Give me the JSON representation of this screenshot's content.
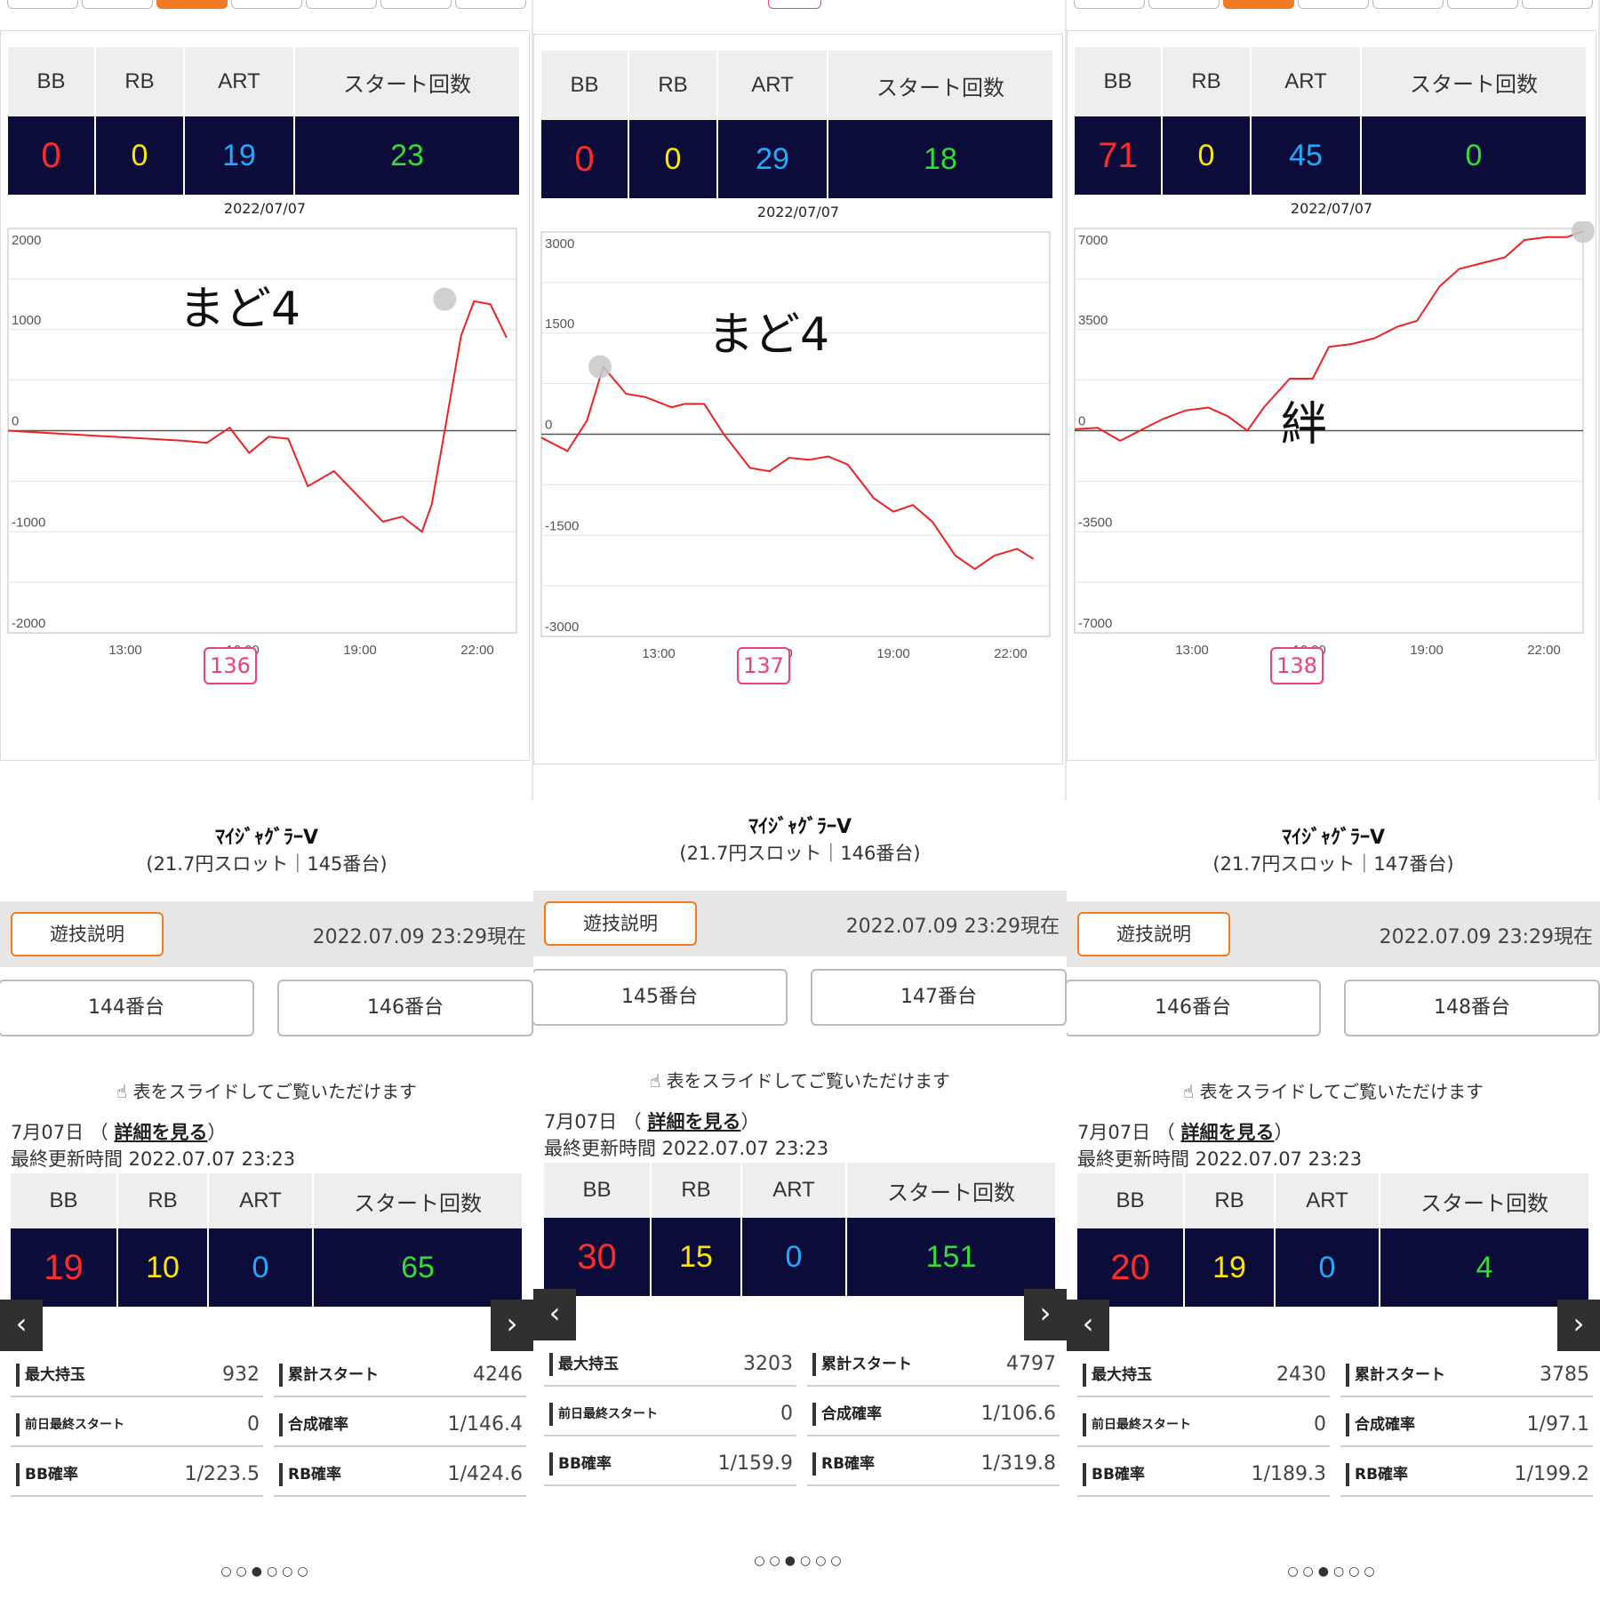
{
  "panels": [
    {
      "header": [
        "BB",
        "RB",
        "ART",
        "スタート回数"
      ],
      "top_stats": {
        "bb": "0",
        "rb": "0",
        "art": "19",
        "start": "23"
      },
      "chart_date": "2022/07/07",
      "y_ticks": [
        "2000",
        "1000",
        "0",
        "-1000",
        "-2000"
      ],
      "x_ticks": [
        "13:00",
        "16:00",
        "19:00",
        "22:00"
      ],
      "overlay": "まど4",
      "machine_no": "136",
      "machine_name": "ﾏｲｼﾞｬｸﾞﾗｰV",
      "machine_sub": "(21.7円スロット｜145番台)",
      "play_button": "遊技説明",
      "timestamp": "2022.07.09 23:29現在",
      "prev_unit": "144番台",
      "next_unit": "146番台",
      "hint": "表をスライドしてご覧いただけます",
      "day": "7月07日",
      "detail_link": "詳細を見る",
      "updated": "最終更新時間 2022.07.07 23:23",
      "day_stats": {
        "bb": "19",
        "rb": "10",
        "art": "0",
        "start": "65"
      },
      "details": {
        "max_label": "最大持玉",
        "max": "932",
        "total_label": "累計スタート",
        "total": "4246",
        "prev_label": "前日最終スタート",
        "prev": "0",
        "comb_label": "合成確率",
        "comb": "1/146.4",
        "bbp_label": "BB確率",
        "bbp": "1/223.5",
        "rbp_label": "RB確率",
        "rbp": "1/424.6"
      },
      "dots": "○○●○○○"
    },
    {
      "header": [
        "BB",
        "RB",
        "ART",
        "スタート回数"
      ],
      "top_stats": {
        "bb": "0",
        "rb": "0",
        "art": "29",
        "start": "18"
      },
      "chart_date": "2022/07/07",
      "y_ticks": [
        "3000",
        "1500",
        "0",
        "-1500",
        "-3000"
      ],
      "x_ticks": [
        "13:00",
        "16:00",
        "19:00",
        "22:00"
      ],
      "overlay": "まど4",
      "machine_no": "137",
      "machine_name": "ﾏｲｼﾞｬｸﾞﾗｰV",
      "machine_sub": "(21.7円スロット｜146番台)",
      "play_button": "遊技説明",
      "timestamp": "2022.07.09 23:29現在",
      "prev_unit": "145番台",
      "next_unit": "147番台",
      "hint": "表をスライドしてご覧いただけます",
      "day": "7月07日",
      "detail_link": "詳細を見る",
      "updated": "最終更新時間 2022.07.07 23:23",
      "day_stats": {
        "bb": "30",
        "rb": "15",
        "art": "0",
        "start": "151"
      },
      "details": {
        "max_label": "最大持玉",
        "max": "3203",
        "total_label": "累計スタート",
        "total": "4797",
        "prev_label": "前日最終スタート",
        "prev": "0",
        "comb_label": "合成確率",
        "comb": "1/106.6",
        "bbp_label": "BB確率",
        "bbp": "1/159.9",
        "rbp_label": "RB確率",
        "rbp": "1/319.8"
      },
      "dots": "○○●○○○"
    },
    {
      "header": [
        "BB",
        "RB",
        "ART",
        "スタート回数"
      ],
      "top_stats": {
        "bb": "71",
        "rb": "0",
        "art": "45",
        "start": "0"
      },
      "chart_date": "2022/07/07",
      "y_ticks": [
        "7000",
        "3500",
        "0",
        "-3500",
        "-7000"
      ],
      "x_ticks": [
        "13:00",
        "16:00",
        "19:00",
        "22:00"
      ],
      "overlay": "絆",
      "machine_no": "138",
      "machine_name": "ﾏｲｼﾞｬｸﾞﾗｰV",
      "machine_sub": "(21.7円スロット｜147番台)",
      "play_button": "遊技説明",
      "timestamp": "2022.07.09 23:29現在",
      "prev_unit": "146番台",
      "next_unit": "148番台",
      "hint": "表をスライドしてご覧いただけます",
      "day": "7月07日",
      "detail_link": "詳細を見る",
      "updated": "最終更新時間 2022.07.07 23:23",
      "day_stats": {
        "bb": "20",
        "rb": "19",
        "art": "0",
        "start": "4"
      },
      "details": {
        "max_label": "最大持玉",
        "max": "2430",
        "total_label": "累計スタート",
        "total": "3785",
        "prev_label": "前日最終スタート",
        "prev": "0",
        "comb_label": "合成確率",
        "comb": "1/97.1",
        "bbp_label": "BB確率",
        "bbp": "1/189.3",
        "rbp_label": "RB確率",
        "rbp": "1/199.2"
      },
      "dots": "○○●○○○"
    }
  ],
  "chart_data": [
    {
      "type": "line",
      "title": "2022/07/07",
      "ylim": [
        -2000,
        2000
      ],
      "xlim": [
        "10:00",
        "23:00"
      ],
      "series": [
        {
          "color": "#ee2222",
          "x": [
            "10:00",
            "12:15",
            "14:30",
            "15:05",
            "15:40",
            "16:10",
            "16:40",
            "17:10",
            "17:40",
            "18:20",
            "18:50",
            "19:35",
            "20:05",
            "20:35",
            "20:50",
            "21:10",
            "21:35",
            "21:55",
            "22:20",
            "22:45"
          ],
          "y": [
            0,
            -50,
            -100,
            -120,
            30,
            -220,
            -60,
            -80,
            -550,
            -400,
            -600,
            -900,
            -850,
            -1000,
            -730,
            0,
            940,
            1280,
            1250,
            920
          ]
        }
      ],
      "end_marker": {
        "x": "21:10",
        "y": 1300
      }
    },
    {
      "type": "line",
      "title": "2022/07/07",
      "ylim": [
        -3000,
        3000
      ],
      "xlim": [
        "10:00",
        "23:00"
      ],
      "series": [
        {
          "color": "#ee2222",
          "x": [
            "10:00",
            "10:40",
            "11:10",
            "11:35",
            "12:10",
            "12:40",
            "13:20",
            "13:40",
            "14:10",
            "14:40",
            "15:20",
            "15:50",
            "16:20",
            "16:50",
            "17:20",
            "17:50",
            "18:30",
            "19:00",
            "19:30",
            "20:00",
            "20:35",
            "21:05",
            "21:35",
            "22:10",
            "22:35"
          ],
          "y": [
            -50,
            -250,
            200,
            1000,
            600,
            550,
            400,
            450,
            450,
            0,
            -500,
            -550,
            -350,
            -380,
            -330,
            -450,
            -950,
            -1150,
            -1050,
            -1300,
            -1800,
            -2000,
            -1800,
            -1700,
            -1850
          ]
        }
      ],
      "end_marker": {
        "x": "11:30",
        "y": 1000
      }
    },
    {
      "type": "line",
      "title": "2022/07/07",
      "ylim": [
        -7000,
        7000
      ],
      "xlim": [
        "10:00",
        "23:00"
      ],
      "series": [
        {
          "color": "#ee2222",
          "x": [
            "10:00",
            "10:35",
            "11:10",
            "11:40",
            "12:15",
            "12:50",
            "13:25",
            "13:55",
            "14:25",
            "14:50",
            "15:30",
            "16:05",
            "16:30",
            "17:05",
            "17:40",
            "18:15",
            "18:45",
            "19:20",
            "19:50",
            "20:25",
            "21:00",
            "21:30",
            "22:05",
            "22:35",
            "23:00"
          ],
          "y": [
            50,
            100,
            -350,
            0,
            400,
            700,
            800,
            500,
            0,
            800,
            1800,
            1800,
            2900,
            3000,
            3200,
            3600,
            3800,
            5000,
            5600,
            5800,
            6000,
            6600,
            6700,
            6700,
            6900
          ]
        }
      ],
      "end_marker": {
        "x": "23:00",
        "y": 6900
      }
    }
  ]
}
